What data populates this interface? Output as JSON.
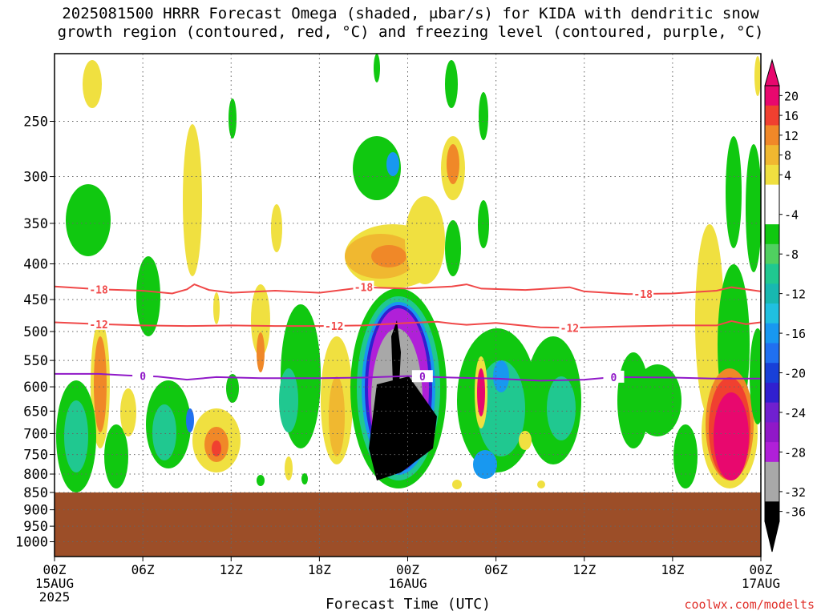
{
  "title_line1": "2025081500 HRRR Forecast Omega (shaded, μbar/s) for KIDA with dendritic snow",
  "title_line2": "growth region (contoured, red, °C) and freezing level (contoured, purple, °C)",
  "credit": "coolwx.com/modelts",
  "chart_data": {
    "type": "heatmap",
    "title": "2025081500 HRRR Forecast Omega (shaded, μbar/s) for KIDA with dendritic snow growth region (contoured, red, °C) and freezing level (contoured, purple, °C)",
    "xlabel": "Forecast Time (UTC)",
    "ylabel": "",
    "x_unit": "hours from 00Z 15AUG 2025",
    "xlim": [
      0,
      48
    ],
    "y_unit": "mb",
    "y_scale": "log",
    "ylim": [
      200,
      1050
    ],
    "grid": true,
    "x_ticks": [
      {
        "value": 0,
        "label": "00Z",
        "sub1": "15AUG",
        "sub2": "2025"
      },
      {
        "value": 6,
        "label": "06Z",
        "sub1": "",
        "sub2": ""
      },
      {
        "value": 12,
        "label": "12Z",
        "sub1": "",
        "sub2": ""
      },
      {
        "value": 18,
        "label": "18Z",
        "sub1": "",
        "sub2": ""
      },
      {
        "value": 24,
        "label": "00Z",
        "sub1": "16AUG",
        "sub2": ""
      },
      {
        "value": 30,
        "label": "06Z",
        "sub1": "",
        "sub2": ""
      },
      {
        "value": 36,
        "label": "12Z",
        "sub1": "",
        "sub2": ""
      },
      {
        "value": 42,
        "label": "18Z",
        "sub1": "",
        "sub2": ""
      },
      {
        "value": 48,
        "label": "00Z",
        "sub1": "17AUG",
        "sub2": ""
      }
    ],
    "y_ticks": [
      {
        "value": 250,
        "label": "250"
      },
      {
        "value": 300,
        "label": "300"
      },
      {
        "value": 350,
        "label": "350"
      },
      {
        "value": 400,
        "label": "400"
      },
      {
        "value": 450,
        "label": "450"
      },
      {
        "value": 500,
        "label": "500"
      },
      {
        "value": 550,
        "label": "550"
      },
      {
        "value": 600,
        "label": "600"
      },
      {
        "value": 650,
        "label": "650"
      },
      {
        "value": 700,
        "label": "700"
      },
      {
        "value": 750,
        "label": "750"
      },
      {
        "value": 800,
        "label": "800"
      },
      {
        "value": 850,
        "label": "850"
      },
      {
        "value": 900,
        "label": "900"
      },
      {
        "value": 950,
        "label": "950"
      },
      {
        "value": 1000,
        "label": "1000"
      }
    ],
    "legend": {
      "placement": "right",
      "levels": [
        {
          "label": "20",
          "color": "#e8086e"
        },
        {
          "label": "16",
          "color": "#f04030"
        },
        {
          "label": "12",
          "color": "#f08828"
        },
        {
          "label": "8",
          "color": "#f0b830"
        },
        {
          "label": "4",
          "color": "#f0e040"
        },
        {
          "label": "",
          "color": "#ffffff"
        },
        {
          "label": "-4",
          "color": "#ffffff"
        },
        {
          "label": "",
          "color": "#10c810"
        },
        {
          "label": "-8",
          "color": "#50d060"
        },
        {
          "label": "",
          "color": "#20c890"
        },
        {
          "label": "-12",
          "color": "#18b8b0"
        },
        {
          "label": "",
          "color": "#20c0e0"
        },
        {
          "label": "-16",
          "color": "#1898f0"
        },
        {
          "label": "",
          "color": "#2070f0"
        },
        {
          "label": "-20",
          "color": "#1840d8"
        },
        {
          "label": "",
          "color": "#3020d0"
        },
        {
          "label": "-24",
          "color": "#7020d0"
        },
        {
          "label": "",
          "color": "#9018c8"
        },
        {
          "label": "-28",
          "color": "#b020d8"
        },
        {
          "label": "",
          "color": "#a8a8a8"
        },
        {
          "label": "-32",
          "color": "#a8a8a8"
        },
        {
          "label": "-36",
          "color": "#000000"
        }
      ]
    },
    "ground": {
      "color": "#9c4e28",
      "top_mb": 850
    },
    "contours": [
      {
        "name": "dendritic -18",
        "value_label": "-18",
        "color": "#f04848",
        "label_at_hours": [
          3,
          21,
          40
        ],
        "points": [
          [
            0,
            431
          ],
          [
            3,
            435
          ],
          [
            6,
            437
          ],
          [
            8,
            441
          ],
          [
            9,
            435
          ],
          [
            9.5,
            428
          ],
          [
            10.5,
            436
          ],
          [
            12,
            440
          ],
          [
            15,
            437
          ],
          [
            18,
            440
          ],
          [
            21,
            432
          ],
          [
            24,
            434
          ],
          [
            27,
            431
          ],
          [
            28,
            428
          ],
          [
            29,
            434
          ],
          [
            32,
            436
          ],
          [
            35,
            432
          ],
          [
            36,
            438
          ],
          [
            39,
            442
          ],
          [
            42,
            441
          ],
          [
            45,
            437
          ],
          [
            46,
            432
          ],
          [
            48,
            438
          ]
        ]
      },
      {
        "name": "dendritic -12",
        "value_label": "-12",
        "color": "#f04848",
        "label_at_hours": [
          3,
          19,
          35
        ],
        "points": [
          [
            0,
            485
          ],
          [
            3,
            488
          ],
          [
            6,
            490
          ],
          [
            9,
            491
          ],
          [
            12,
            490
          ],
          [
            15,
            491
          ],
          [
            18,
            491
          ],
          [
            21,
            490
          ],
          [
            24,
            486
          ],
          [
            26,
            484
          ],
          [
            27,
            487
          ],
          [
            28,
            489
          ],
          [
            30,
            486
          ],
          [
            33,
            493
          ],
          [
            35,
            494
          ],
          [
            38,
            492
          ],
          [
            42,
            490
          ],
          [
            45,
            490
          ],
          [
            46,
            483
          ],
          [
            47,
            488
          ],
          [
            48,
            485
          ]
        ]
      },
      {
        "name": "freezing level 0",
        "value_label": "0",
        "color": "#9018c8",
        "label_at_hours": [
          6,
          25,
          38
        ],
        "points": [
          [
            0,
            575
          ],
          [
            3,
            575
          ],
          [
            5,
            578
          ],
          [
            7,
            580
          ],
          [
            9,
            586
          ],
          [
            11,
            581
          ],
          [
            14,
            583
          ],
          [
            18,
            583
          ],
          [
            21,
            582
          ],
          [
            24,
            579
          ],
          [
            27,
            582
          ],
          [
            30,
            584
          ],
          [
            33,
            588
          ],
          [
            36,
            586
          ],
          [
            38,
            581
          ],
          [
            42,
            582
          ],
          [
            45,
            584
          ],
          [
            48,
            584
          ]
        ]
      }
    ]
  }
}
